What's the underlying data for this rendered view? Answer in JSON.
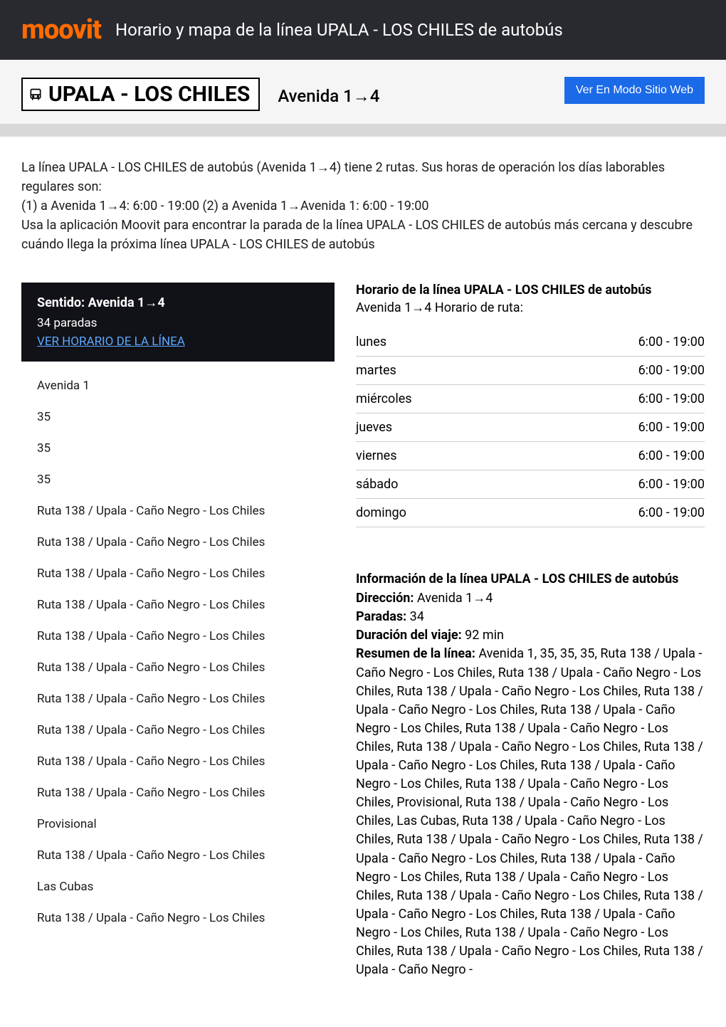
{
  "header": {
    "logo": "moovit",
    "title": "Horario y mapa de la línea UPALA - LOS CHILES de autobús",
    "logo_color": "#ff6b00",
    "bg_color": "#292a30"
  },
  "banner": {
    "route_name": "UPALA - LOS CHILES",
    "direction": "Avenida 1→4",
    "web_button": "Ver En Modo Sitio Web",
    "button_bg": "#1b6ae8"
  },
  "intro": {
    "p1": "La línea UPALA - LOS CHILES de autobús (Avenida 1→4) tiene 2 rutas. Sus horas de operación los días laborables regulares son:",
    "p2": "(1) a Avenida 1→4: 6:00 - 19:00 (2) a Avenida 1→Avenida 1: 6:00 - 19:00",
    "p3": "Usa la aplicación Moovit para encontrar la parada de la línea UPALA - LOS CHILES de autobús más cercana y descubre cuándo llega la próxima línea UPALA - LOS CHILES de autobús"
  },
  "direction_box": {
    "title": "Sentido: Avenida 1→4",
    "sub": "34 paradas",
    "link": "VER HORARIO DE LA LÍNEA"
  },
  "stops": [
    "Avenida 1",
    "35",
    "35",
    "35",
    "Ruta 138 / Upala - Caño Negro - Los Chiles",
    "Ruta 138 / Upala - Caño Negro - Los Chiles",
    "Ruta 138 / Upala - Caño Negro - Los Chiles",
    "Ruta 138 / Upala - Caño Negro - Los Chiles",
    "Ruta 138 / Upala - Caño Negro - Los Chiles",
    "Ruta 138 / Upala - Caño Negro - Los Chiles",
    "Ruta 138 / Upala - Caño Negro - Los Chiles",
    "Ruta 138 / Upala - Caño Negro - Los Chiles",
    "Ruta 138 / Upala - Caño Negro - Los Chiles",
    "Ruta 138 / Upala - Caño Negro - Los Chiles",
    "Provisional",
    "Ruta 138 / Upala - Caño Negro - Los Chiles",
    "Las Cubas",
    "Ruta 138 / Upala - Caño Negro - Los Chiles"
  ],
  "schedule": {
    "title": "Horario de la línea UPALA - LOS CHILES de autobús",
    "sub": "Avenida 1→4 Horario de ruta:",
    "rows": [
      {
        "day": "lunes",
        "hours": "6:00 - 19:00"
      },
      {
        "day": "martes",
        "hours": "6:00 - 19:00"
      },
      {
        "day": "miércoles",
        "hours": "6:00 - 19:00"
      },
      {
        "day": "jueves",
        "hours": "6:00 - 19:00"
      },
      {
        "day": "viernes",
        "hours": "6:00 - 19:00"
      },
      {
        "day": "sábado",
        "hours": "6:00 - 19:00"
      },
      {
        "day": "domingo",
        "hours": "6:00 - 19:00"
      }
    ]
  },
  "info": {
    "title": "Información de la línea UPALA - LOS CHILES de autobús",
    "direction_lbl": "Dirección:",
    "direction_val": " Avenida 1→4",
    "stops_lbl": "Paradas:",
    "stops_val": " 34",
    "duration_lbl": "Duración del viaje:",
    "duration_val": " 92 min",
    "summary_lbl": "Resumen de la línea:",
    "summary_val": " Avenida 1, 35, 35, 35, Ruta 138 / Upala - Caño Negro - Los Chiles, Ruta 138 / Upala - Caño Negro - Los Chiles, Ruta 138 / Upala - Caño Negro - Los Chiles, Ruta 138 / Upala - Caño Negro - Los Chiles, Ruta 138 / Upala - Caño Negro - Los Chiles, Ruta 138 / Upala - Caño Negro - Los Chiles, Ruta 138 / Upala - Caño Negro - Los Chiles, Ruta 138 / Upala - Caño Negro - Los Chiles, Ruta 138 / Upala - Caño Negro - Los Chiles, Ruta 138 / Upala - Caño Negro - Los Chiles, Provisional, Ruta 138 / Upala - Caño Negro - Los Chiles, Las Cubas, Ruta 138 / Upala - Caño Negro - Los Chiles, Ruta 138 / Upala - Caño Negro - Los Chiles, Ruta 138 / Upala - Caño Negro - Los Chiles, Ruta 138 / Upala - Caño Negro - Los Chiles, Ruta 138 / Upala - Caño Negro - Los Chiles, Ruta 138 / Upala - Caño Negro - Los Chiles, Ruta 138 / Upala - Caño Negro - Los Chiles, Ruta 138 / Upala - Caño Negro - Los Chiles, Ruta 138 / Upala - Caño Negro - Los Chiles, Ruta 138 / Upala - Caño Negro - Los Chiles, Ruta 138 / Upala - Caño Negro -"
  }
}
